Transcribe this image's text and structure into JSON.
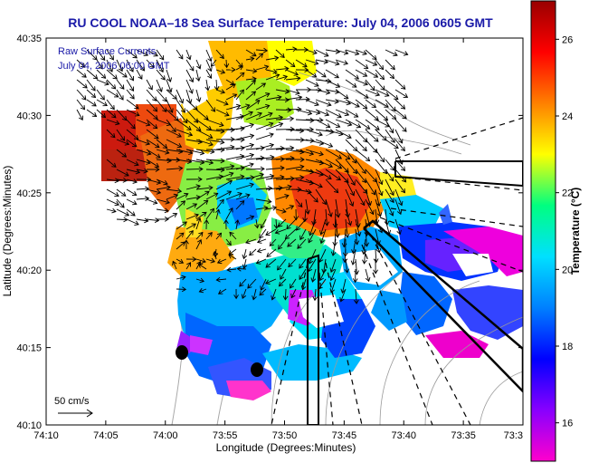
{
  "chart_data": {
    "type": "heatmap",
    "title": "RU COOL  NOAA–18  Sea Surface Temperature:  July 04, 2006 0605 GMT",
    "xlabel": "Longitude (Degrees:Minutes)",
    "ylabel": "Latitude (Degrees:Minutes)",
    "x_ticks": [
      "74:10",
      "74:05",
      "74:00",
      "73:55",
      "73:50",
      "73:45",
      "73:40",
      "73:35",
      "73:3"
    ],
    "y_ticks": [
      "40:35",
      "40:30",
      "40:25",
      "40:20",
      "40:15",
      "40:10"
    ],
    "colorbar": {
      "label": "Temperature (°C)",
      "ticks": [
        "26",
        "24",
        "22",
        "20",
        "18",
        "16"
      ],
      "range": [
        15,
        27
      ],
      "colors": [
        "#ff00cc",
        "#8800ff",
        "#0000ff",
        "#0080ff",
        "#00e0ff",
        "#00ff80",
        "#ffff00",
        "#ff8000",
        "#ff0000",
        "#990000"
      ]
    },
    "annotations": [
      "Raw Surface Currents",
      "July 04, 2006 06:00 GMT"
    ],
    "scale_label": "50 cm/s",
    "grid": false,
    "legend": "colorbar-right"
  }
}
